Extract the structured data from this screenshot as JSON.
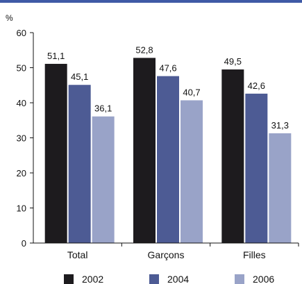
{
  "chart_data": {
    "type": "bar",
    "unit_label": "%",
    "categories": [
      "Total",
      "Garçons",
      "Filles"
    ],
    "series": [
      {
        "name": "2002",
        "color": "#1d1b1e",
        "values": [
          51.1,
          52.8,
          49.5
        ],
        "labels": [
          "51,1",
          "52,8",
          "49,5"
        ]
      },
      {
        "name": "2004",
        "color": "#4d5b94",
        "values": [
          45.1,
          47.6,
          42.6
        ],
        "labels": [
          "45,1",
          "47,6",
          "42,6"
        ]
      },
      {
        "name": "2006",
        "color": "#99a3c8",
        "values": [
          36.1,
          40.7,
          31.3
        ],
        "labels": [
          "36,1",
          "40,7",
          "31,3"
        ]
      }
    ],
    "ylim": [
      0,
      60
    ],
    "yticks": [
      "0",
      "10",
      "20",
      "30",
      "40",
      "50",
      "60"
    ],
    "ytick_values": [
      0,
      10,
      20,
      30,
      40,
      50,
      60
    ],
    "top_rule_color": "#3f5aa6",
    "grid": false,
    "legend_position": "bottom"
  }
}
